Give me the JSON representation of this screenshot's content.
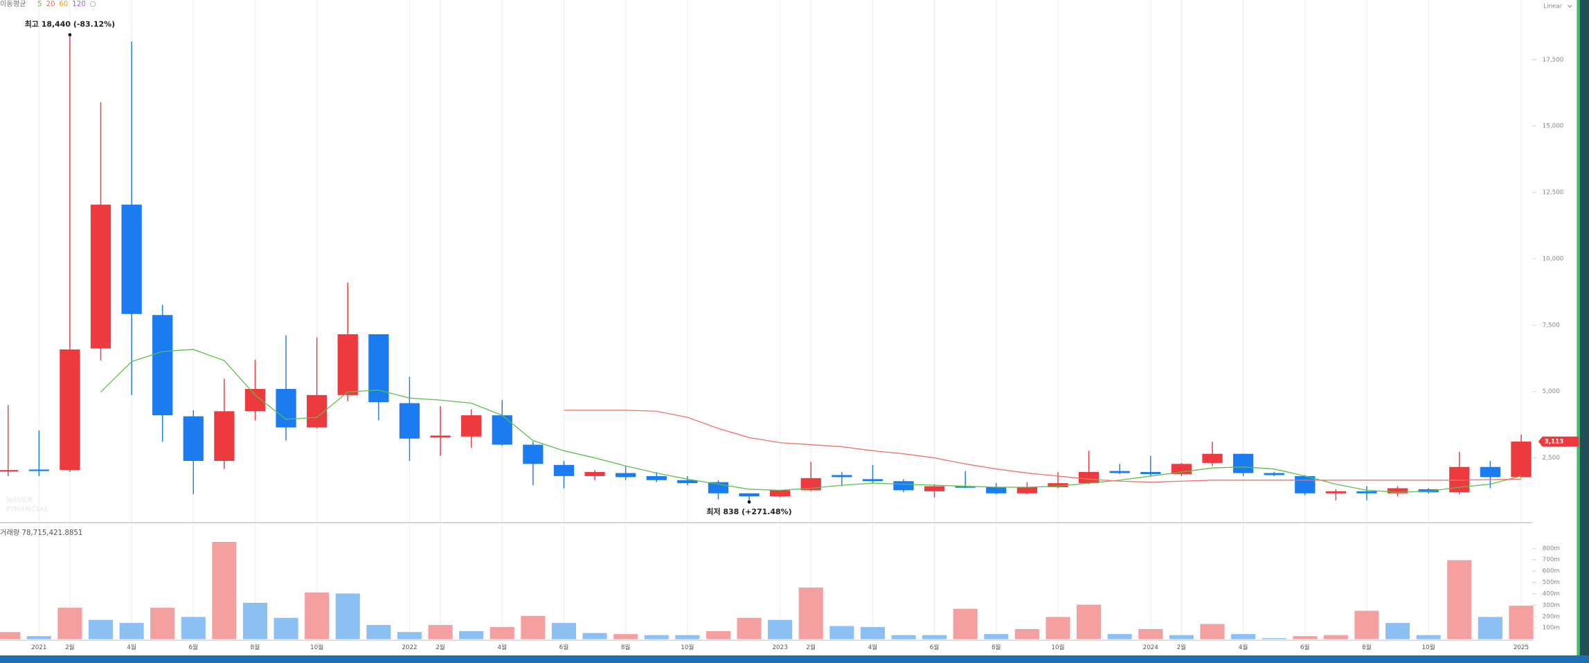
{
  "chart_data": {
    "type": "candlestick",
    "ma_label": "이동평균",
    "scale_label": "Linear",
    "watermark": [
      "NAVER",
      "FINANCIAL"
    ],
    "categories": [
      null,
      "2021",
      "2월",
      null,
      "4월",
      null,
      "6월",
      null,
      "8월",
      null,
      "10월",
      null,
      null,
      "2022",
      "2월",
      null,
      "4월",
      null,
      "6월",
      null,
      "8월",
      null,
      "10월",
      null,
      null,
      "2023",
      "2월",
      null,
      "4월",
      null,
      "6월",
      null,
      "8월",
      null,
      "10월",
      null,
      null,
      "2024",
      "2월",
      null,
      "4월",
      null,
      "6월",
      null,
      "8월",
      null,
      "10월",
      null,
      null,
      "2025"
    ],
    "open": [
      2000,
      2060,
      2042,
      6622,
      12042,
      7882,
      4065,
      2385,
      4256,
      5096,
      3645,
      4866,
      7157,
      4561,
      3263,
      3302,
      4103,
      2996,
      2233,
      1813,
      1927,
      1813,
      1660,
      1584,
      1164,
      1050,
      1279,
      1851,
      1698,
      1622,
      1241,
      1431,
      1393,
      1164,
      1393,
      1546,
      2004,
      1966,
      1889,
      2309,
      2653,
      1927,
      1813,
      1164,
      1241,
      1164,
      1317,
      1203,
      2157,
      1775
    ],
    "high": [
      4485,
      3530,
      18440,
      15897,
      18188,
      8264,
      4294,
      5477,
      6202,
      7119,
      7043,
      9103,
      7157,
      5553,
      4447,
      4332,
      4676,
      3111,
      2385,
      2042,
      2195,
      1966,
      1813,
      1660,
      1164,
      1279,
      2347,
      1966,
      2233,
      1698,
      1508,
      2004,
      1546,
      1584,
      1966,
      2767,
      2271,
      2576,
      2309,
      3111,
      2653,
      1966,
      1851,
      1317,
      1431,
      1431,
      1355,
      2729,
      2385,
      3378
    ],
    "low": [
      1813,
      1810,
      1966,
      6164,
      4866,
      3111,
      1126,
      2080,
      3912,
      3149,
      3607,
      4637,
      3912,
      2385,
      2576,
      2882,
      2958,
      1469,
      1355,
      1660,
      1660,
      1584,
      1469,
      935,
      838,
      1012,
      1241,
      1431,
      1546,
      1203,
      1012,
      1355,
      1126,
      1126,
      1355,
      1508,
      1889,
      1813,
      1813,
      2195,
      1813,
      1813,
      1088,
      897,
      897,
      1050,
      1164,
      1126,
      1355,
      1737
    ],
    "close": [
      2040,
      2020,
      6584,
      12042,
      7920,
      4103,
      2385,
      4256,
      5096,
      3645,
      4866,
      7157,
      4599,
      3225,
      3340,
      4103,
      2996,
      2271,
      1813,
      1966,
      1775,
      1660,
      1546,
      1164,
      1050,
      1279,
      1737,
      1775,
      1622,
      1279,
      1431,
      1393,
      1164,
      1393,
      1546,
      1966,
      1927,
      1889,
      2271,
      2653,
      1927,
      1851,
      1164,
      1241,
      1164,
      1355,
      1203,
      2157,
      1775,
      3113
    ],
    "last_price_label": "3,113",
    "up_color": "#ec3a3f",
    "down_color": "#1a7cf0",
    "ylim": [
      95,
      19750
    ],
    "yticks": [
      {
        "value": 2500,
        "label": "2,500"
      },
      {
        "value": 5000,
        "label": "5,000"
      },
      {
        "value": 7500,
        "label": "7,500"
      },
      {
        "value": 10000,
        "label": "10,000"
      },
      {
        "value": 12500,
        "label": "12,500"
      },
      {
        "value": 15000,
        "label": "15,000"
      },
      {
        "value": 17500,
        "label": "17,500"
      }
    ],
    "grid": "x",
    "series": [
      {
        "name": "5",
        "color": "#5cbf4a",
        "values": [
          null,
          null,
          null,
          4981,
          6126,
          6508,
          6584,
          6164,
          4866,
          3950,
          4027,
          4981,
          5057,
          4752,
          4676,
          4561,
          4103,
          3149,
          2767,
          2500,
          2195,
          1927,
          1698,
          1508,
          1317,
          1279,
          1355,
          1469,
          1546,
          1508,
          1469,
          1431,
          1393,
          1393,
          1431,
          1546,
          1660,
          1813,
          1966,
          2118,
          2157,
          2080,
          1813,
          1508,
          1279,
          1203,
          1241,
          1393,
          1508,
          1813
        ]
      },
      {
        "name": "20",
        "color": "#f07167",
        "values": [
          null,
          null,
          null,
          null,
          null,
          null,
          null,
          null,
          null,
          null,
          null,
          null,
          null,
          null,
          null,
          null,
          null,
          null,
          4294,
          4294,
          4294,
          4256,
          4027,
          3607,
          3263,
          3072,
          2996,
          2920,
          2767,
          2653,
          2500,
          2271,
          2080,
          1927,
          1813,
          1698,
          1622,
          1584,
          1622,
          1660,
          1660,
          1660,
          1660,
          1660,
          1660,
          1660,
          1660,
          1660,
          1680,
          1698
        ]
      },
      {
        "name": "60",
        "color": "#f39c12",
        "values": [
          null,
          null,
          null,
          null,
          null,
          null,
          null,
          null,
          null,
          null,
          null,
          null,
          null,
          null,
          null,
          null,
          null,
          null,
          null,
          null,
          null,
          null,
          null,
          null,
          null,
          null,
          null,
          null,
          null,
          null,
          null,
          null,
          null,
          null,
          null,
          null,
          null,
          null,
          null,
          null,
          null,
          null,
          null,
          null,
          null,
          null,
          null,
          null,
          null,
          null
        ]
      },
      {
        "name": "120",
        "color": "#9b6bd6",
        "values": [
          null,
          null,
          null,
          null,
          null,
          null,
          null,
          null,
          null,
          null,
          null,
          null,
          null,
          null,
          null,
          null,
          null,
          null,
          null,
          null,
          null,
          null,
          null,
          null,
          null,
          null,
          null,
          null,
          null,
          null,
          null,
          null,
          null,
          null,
          null,
          null,
          null,
          null,
          null,
          null,
          null,
          null,
          null,
          null,
          null,
          null,
          null,
          null,
          null,
          null
        ]
      }
    ],
    "annotations": [
      {
        "text": "최고 18,440 (-83.12%)",
        "point": "high",
        "index": 2
      },
      {
        "text": "최저 838 (+271.48%)",
        "point": "low",
        "index": 24
      }
    ],
    "volume": {
      "title": "거래량 78,715,421.8851",
      "values": [
        63000000,
        27000000,
        277000000,
        170000000,
        143000000,
        277000000,
        196000000,
        857000000,
        321000000,
        188000000,
        411000000,
        402000000,
        125000000,
        63000000,
        125000000,
        71000000,
        107000000,
        205000000,
        143000000,
        54000000,
        45000000,
        36000000,
        36000000,
        71000000,
        188000000,
        170000000,
        455000000,
        116000000,
        107000000,
        36000000,
        36000000,
        268000000,
        45000000,
        89000000,
        196000000,
        304000000,
        45000000,
        89000000,
        36000000,
        134000000,
        45000000,
        9000000,
        27000000,
        36000000,
        250000000,
        143000000,
        36000000,
        696000000,
        196000000,
        295000000
      ],
      "colors": [
        "#f4a0a0",
        "#8cc0f5",
        "#f4a0a0",
        "#8cc0f5",
        "#8cc0f5",
        "#f4a0a0",
        "#8cc0f5",
        "#f4a0a0",
        "#8cc0f5",
        "#8cc0f5",
        "#f4a0a0",
        "#8cc0f5",
        "#8cc0f5",
        "#8cc0f5",
        "#f4a0a0",
        "#8cc0f5",
        "#f4a0a0",
        "#f4a0a0",
        "#8cc0f5",
        "#8cc0f5",
        "#f4a0a0",
        "#8cc0f5",
        "#8cc0f5",
        "#f4a0a0",
        "#f4a0a0",
        "#8cc0f5",
        "#f4a0a0",
        "#8cc0f5",
        "#8cc0f5",
        "#8cc0f5",
        "#8cc0f5",
        "#f4a0a0",
        "#8cc0f5",
        "#f4a0a0",
        "#f4a0a0",
        "#f4a0a0",
        "#8cc0f5",
        "#f4a0a0",
        "#8cc0f5",
        "#f4a0a0",
        "#8cc0f5",
        "#8cc0f5",
        "#f4a0a0",
        "#f4a0a0",
        "#f4a0a0",
        "#8cc0f5",
        "#8cc0f5",
        "#f4a0a0",
        "#8cc0f5",
        "#f4a0a0"
      ],
      "ylim": [
        0,
        910000000
      ],
      "yticks": [
        {
          "value": 100000000,
          "label": "100m"
        },
        {
          "value": 200000000,
          "label": "200m"
        },
        {
          "value": 300000000,
          "label": "300m"
        },
        {
          "value": 400000000,
          "label": "400m"
        },
        {
          "value": 500000000,
          "label": "500m"
        },
        {
          "value": 600000000,
          "label": "600m"
        },
        {
          "value": 700000000,
          "label": "700m"
        },
        {
          "value": 800000000,
          "label": "800m"
        }
      ]
    }
  }
}
